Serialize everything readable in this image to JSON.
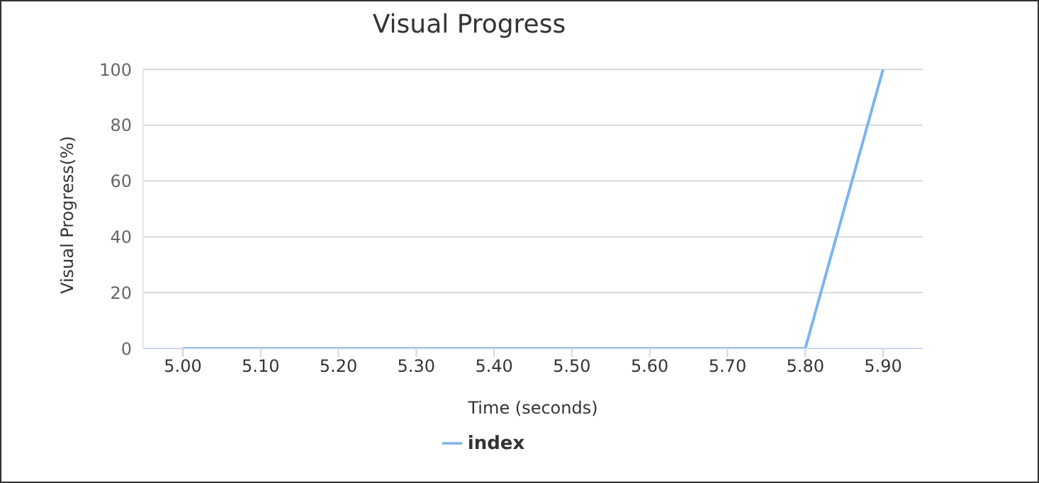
{
  "chart_data": {
    "type": "line",
    "title": "Visual Progress",
    "xlabel": "Time (seconds)",
    "ylabel": "Visual Progress(%)",
    "categories": [
      "5.00",
      "5.10",
      "5.20",
      "5.30",
      "5.40",
      "5.50",
      "5.60",
      "5.70",
      "5.80",
      "5.90"
    ],
    "series": [
      {
        "name": "index",
        "color": "#7cb5ec",
        "values": [
          0,
          0,
          0,
          0,
          0,
          0,
          0,
          0,
          0,
          100
        ]
      }
    ],
    "ylim": [
      0,
      100
    ],
    "yticks": [
      0,
      20,
      40,
      60,
      80,
      100
    ],
    "grid": "y",
    "legend": "bottom",
    "marker": "none",
    "line_style": "solid"
  }
}
